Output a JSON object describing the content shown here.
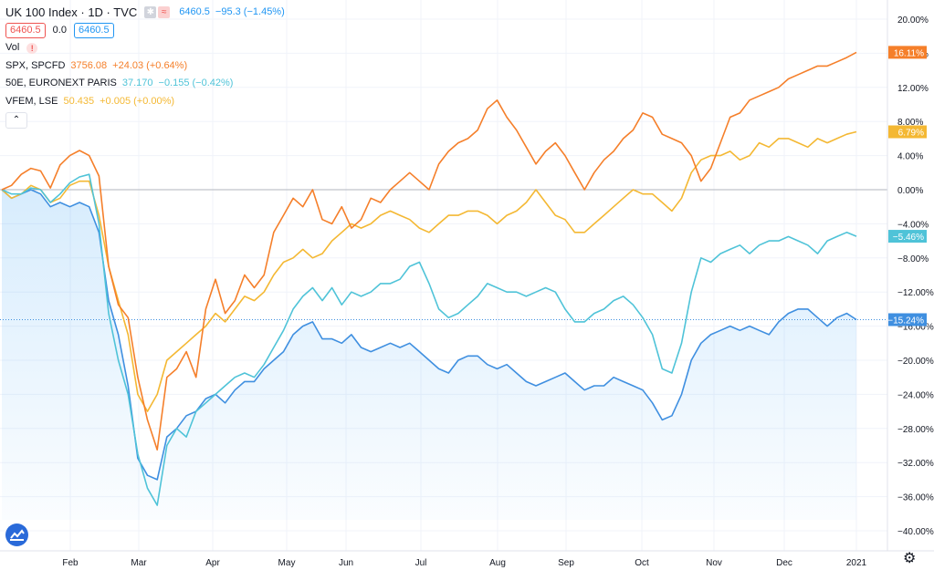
{
  "header": {
    "title": "UK 100 Index · 1D · TVC",
    "price": "6460.5",
    "change": "−95.3 (−1.45%)",
    "bid": "6460.5",
    "spread": "0.0",
    "ask": "6460.5",
    "vol_label": "Vol",
    "warn": "!",
    "collapse_icon": "chevron-up"
  },
  "legend": [
    {
      "name": "SPX, SPCFD",
      "value": "3756.08",
      "change": "+24.03 (+0.64%)",
      "color": "#f57f2a"
    },
    {
      "name": "50E, EURONEXT PARIS",
      "value": "37.170",
      "change": "−0.155 (−0.42%)",
      "color": "#4fc3d8"
    },
    {
      "name": "VFEM, LSE",
      "value": "50.435",
      "change": "+0.005 (+0.00%)",
      "color": "#f4b833"
    }
  ],
  "chart_data": {
    "type": "line",
    "x_range": [
      "2020-01-02",
      "2020-12-31"
    ],
    "ylim": [
      -42,
      22
    ],
    "y_ticks": [
      "20.00%",
      "16.00%",
      "12.00%",
      "8.00%",
      "4.00%",
      "0.00%",
      "−4.00%",
      "−8.00%",
      "−12.00%",
      "−16.00%",
      "−20.00%",
      "−24.00%",
      "−28.00%",
      "−32.00%",
      "−36.00%",
      "−40.00%"
    ],
    "x_ticks": [
      "Feb",
      "Mar",
      "Apr",
      "May",
      "Jun",
      "Jul",
      "Aug",
      "Sep",
      "Oct",
      "Nov",
      "Dec",
      "2021"
    ],
    "series": [
      {
        "name": "SPX, SPCFD",
        "color": "#f57f2a",
        "last_label": "16.11%",
        "values": [
          0,
          0.5,
          1.8,
          2.5,
          2.2,
          0.2,
          2.9,
          4.0,
          4.6,
          4.0,
          1.6,
          -9.0,
          -13.5,
          -15.0,
          -22.0,
          -27.0,
          -30.5,
          -22.0,
          -21.0,
          -19.0,
          -22.0,
          -14.0,
          -10.5,
          -14.5,
          -13.0,
          -10.0,
          -11.5,
          -10.0,
          -5.0,
          -3.0,
          -1.0,
          -2.0,
          0.0,
          -3.5,
          -4.0,
          -2.0,
          -4.5,
          -3.5,
          -1.0,
          -1.5,
          0.0,
          1.0,
          2.0,
          1.0,
          0.0,
          3.0,
          4.5,
          5.5,
          6.0,
          7.0,
          9.5,
          10.5,
          8.5,
          7.0,
          5.0,
          3.0,
          4.5,
          5.5,
          4.0,
          2.0,
          0.0,
          2.0,
          3.5,
          4.5,
          6.0,
          7.0,
          9.0,
          8.5,
          6.5,
          6.0,
          5.5,
          4.0,
          1.0,
          2.5,
          5.5,
          8.5,
          9.0,
          10.5,
          11.0,
          11.5,
          12.0,
          13.0,
          13.5,
          14.0,
          14.5,
          14.5,
          15.0,
          15.5,
          16.11
        ]
      },
      {
        "name": "50E, EURONEXT PARIS",
        "color": "#4fc3d8",
        "last_label": "-5.46%",
        "values": [
          0,
          -0.5,
          -0.5,
          0.2,
          0.0,
          -1.5,
          -0.5,
          0.8,
          1.5,
          1.8,
          -4.0,
          -14.5,
          -20.0,
          -24.0,
          -31.0,
          -35.0,
          -37.0,
          -30.0,
          -28.0,
          -29.0,
          -26.0,
          -25.0,
          -24.0,
          -23.0,
          -22.0,
          -21.5,
          -22.0,
          -20.5,
          -18.5,
          -16.5,
          -14.0,
          -12.5,
          -11.5,
          -13.0,
          -11.5,
          -13.5,
          -12.0,
          -12.5,
          -12.0,
          -11.0,
          -11.0,
          -10.5,
          -9.0,
          -8.5,
          -11.0,
          -14.0,
          -15.0,
          -14.5,
          -13.5,
          -12.5,
          -11.0,
          -11.5,
          -12.0,
          -12.0,
          -12.5,
          -12.0,
          -11.5,
          -12.0,
          -14.0,
          -15.5,
          -15.5,
          -14.5,
          -14.0,
          -13.0,
          -12.5,
          -13.5,
          -15.0,
          -17.0,
          -21.0,
          -21.5,
          -18.0,
          -12.0,
          -8.0,
          -8.5,
          -7.5,
          -7.0,
          -6.5,
          -7.5,
          -6.5,
          -6.0,
          -6.0,
          -5.5,
          -6.0,
          -6.5,
          -7.5,
          -6.0,
          -5.5,
          -5.0,
          -5.46
        ]
      },
      {
        "name": "VFEM, LSE",
        "color": "#f4b833",
        "last_label": "6.79%",
        "values": [
          0,
          -1.0,
          -0.5,
          0.5,
          0.0,
          -1.5,
          -1.0,
          0.5,
          1.0,
          1.0,
          -3.0,
          -9.0,
          -13.0,
          -17.0,
          -24.0,
          -26.0,
          -24.0,
          -20.0,
          -19.0,
          -18.0,
          -17.0,
          -16.0,
          -14.5,
          -15.5,
          -14.0,
          -12.5,
          -13.0,
          -12.0,
          -10.0,
          -8.5,
          -8.0,
          -7.0,
          -8.0,
          -7.5,
          -6.0,
          -5.0,
          -4.0,
          -4.5,
          -4.0,
          -3.0,
          -2.5,
          -3.0,
          -3.5,
          -4.5,
          -5.0,
          -4.0,
          -3.0,
          -3.0,
          -2.5,
          -2.5,
          -3.0,
          -4.0,
          -3.0,
          -2.5,
          -1.5,
          0.0,
          -1.5,
          -3.0,
          -3.5,
          -5.0,
          -5.0,
          -4.0,
          -3.0,
          -2.0,
          -1.0,
          0.0,
          -0.5,
          -0.5,
          -1.5,
          -2.5,
          -1.0,
          2.0,
          3.5,
          4.0,
          4.0,
          4.5,
          3.5,
          4.0,
          5.5,
          5.0,
          6.0,
          6.0,
          5.5,
          5.0,
          6.0,
          5.5,
          6.0,
          6.5,
          6.79
        ]
      },
      {
        "name": "UK 100 Index",
        "color": "#3f8fe0",
        "last_label": "-15.24%",
        "values": [
          0,
          -1.0,
          -0.5,
          0.0,
          -0.5,
          -2.0,
          -1.5,
          -2.0,
          -1.5,
          -2.0,
          -5.0,
          -13.0,
          -17.0,
          -23.0,
          -31.5,
          -33.5,
          -34.0,
          -29.0,
          -28.0,
          -26.5,
          -26.0,
          -24.5,
          -24.0,
          -25.0,
          -23.5,
          -22.5,
          -22.5,
          -21.0,
          -20.0,
          -19.0,
          -17.0,
          -16.0,
          -15.5,
          -17.5,
          -17.5,
          -18.0,
          -17.0,
          -18.5,
          -19.0,
          -18.5,
          -18.0,
          -18.5,
          -18.0,
          -19.0,
          -20.0,
          -21.0,
          -21.5,
          -20.0,
          -19.5,
          -19.5,
          -20.5,
          -21.0,
          -20.5,
          -21.5,
          -22.5,
          -23.0,
          -22.5,
          -22.0,
          -21.5,
          -22.5,
          -23.5,
          -23.0,
          -23.0,
          -22.0,
          -22.5,
          -23.0,
          -23.5,
          -25.0,
          -27.0,
          -26.5,
          -24.0,
          -20.0,
          -18.0,
          -17.0,
          -16.5,
          -16.0,
          -16.5,
          -16.0,
          -16.5,
          -17.0,
          -15.5,
          -14.5,
          -14.0,
          -14.0,
          -15.0,
          -16.0,
          -15.0,
          -14.5,
          -15.24
        ]
      }
    ]
  },
  "colors": {
    "grid": "#f0f3fa",
    "axis_text": "#131722",
    "zero_line": "#b2b5be",
    "area_top": "#2196f3"
  }
}
